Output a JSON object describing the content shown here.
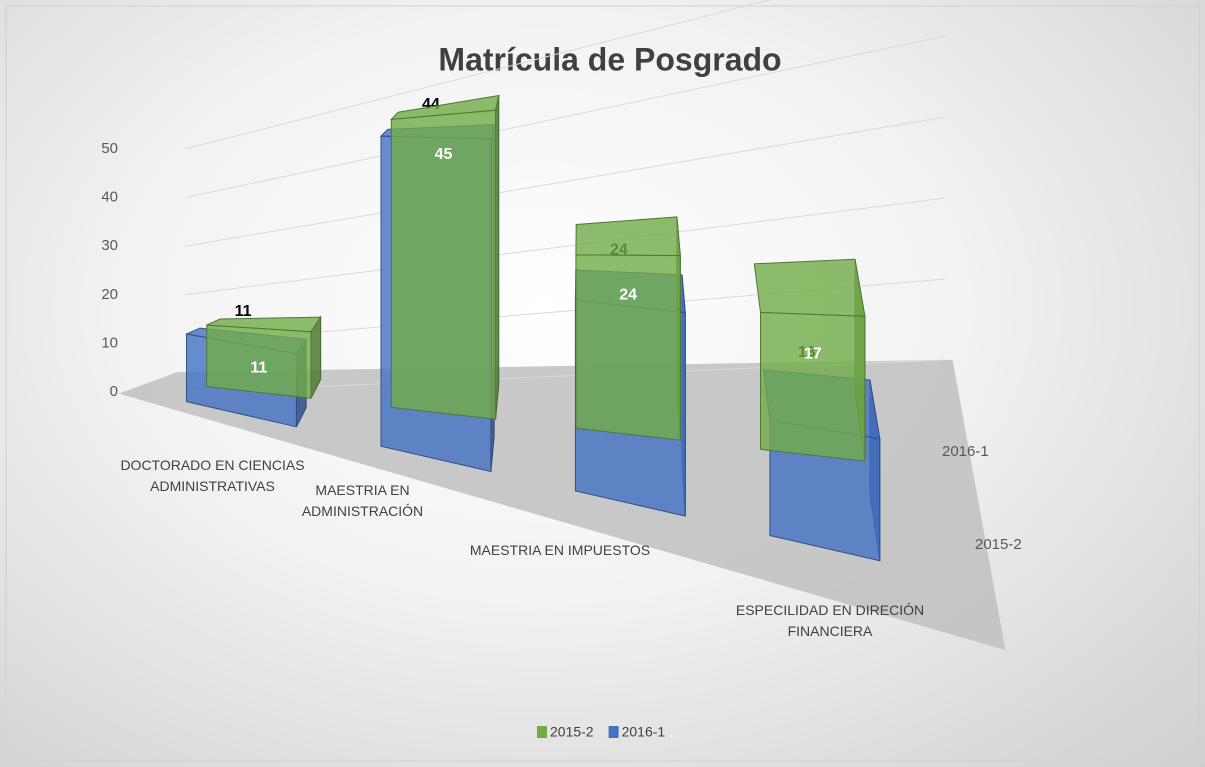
{
  "chart_data": {
    "type": "bar3d",
    "title": "Matrícula de Posgrado",
    "categories": [
      "DOCTORADO EN CIENCIAS ADMINISTRATIVAS",
      "MAESTRIA EN ADMINISTRACIÓN",
      "MAESTRIA EN IMPUESTOS",
      "ESPECILIDAD EN DIRECIÓN FINANCIERA"
    ],
    "series": [
      {
        "name": "2015-2",
        "color": "#70ad47",
        "values": [
          11,
          45,
          24,
          17
        ]
      },
      {
        "name": "2016-1",
        "color": "#4472c4",
        "values": [
          11,
          44,
          24,
          13
        ]
      }
    ],
    "ylim": [
      0,
      50
    ],
    "yticks": [
      0,
      10,
      20,
      30,
      40,
      50
    ],
    "grid": true,
    "legend": "bottom"
  }
}
